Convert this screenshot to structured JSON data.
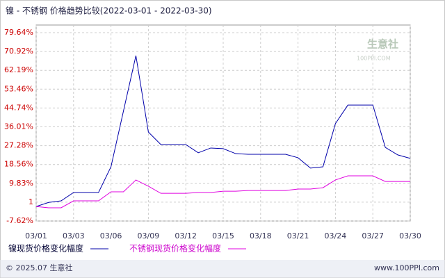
{
  "chart_data": {
    "type": "line",
    "title": "镍 - 不锈钢 价格趋势比较(2022-03-01 - 2022-03-30)",
    "categories": [
      "03/01",
      null,
      null,
      "03/03",
      null,
      null,
      "03/06",
      null,
      null,
      "03/09",
      null,
      null,
      "03/12",
      null,
      null,
      "03/15",
      null,
      null,
      "03/18",
      null,
      null,
      "03/21",
      null,
      null,
      "03/24",
      null,
      null,
      "03/27",
      null,
      null,
      "03/30"
    ],
    "series": [
      {
        "name": "镍现货价格变化幅度",
        "color": "#0000aa",
        "values": [
          -0.9,
          1.0,
          1.7,
          5.6,
          5.6,
          5.6,
          17.5,
          43.3,
          69.0,
          33.6,
          27.8,
          27.8,
          27.8,
          24.0,
          26.2,
          25.9,
          23.6,
          23.3,
          23.3,
          23.3,
          23.3,
          21.7,
          16.9,
          17.5,
          37.5,
          46.1,
          46.1,
          46.1,
          26.5,
          23.0,
          21.4
        ]
      },
      {
        "name": "不锈钢现货价格变化幅度",
        "color": "#e000e0",
        "values": [
          -0.9,
          -1.5,
          -1.5,
          1.7,
          1.7,
          1.7,
          5.9,
          5.9,
          11.4,
          8.5,
          5.2,
          5.2,
          5.2,
          5.6,
          5.6,
          6.2,
          6.2,
          6.5,
          6.5,
          6.5,
          6.5,
          7.2,
          7.2,
          7.8,
          11.4,
          13.3,
          13.3,
          13.3,
          10.7,
          10.7,
          10.7
        ]
      }
    ],
    "ylim": [
      -7.62,
      79.64
    ],
    "yticks": [
      {
        "value": -7.62,
        "label": "-7.62%"
      },
      {
        "value": 1.1,
        "label": "1"
      },
      {
        "value": 9.83,
        "label": "9.83%"
      },
      {
        "value": 18.56,
        "label": "18.56%"
      },
      {
        "value": 27.28,
        "label": "27.28%"
      },
      {
        "value": 36.01,
        "label": "36.01%"
      },
      {
        "value": 44.74,
        "label": "44.74%"
      },
      {
        "value": 53.46,
        "label": "53.46%"
      },
      {
        "value": 62.19,
        "label": "62.19%"
      },
      {
        "value": 70.92,
        "label": "70.92%"
      },
      {
        "value": 79.64,
        "label": "79.64%"
      }
    ],
    "grid": true,
    "watermark": {
      "name": "生意社",
      "site": "100PPI.COM"
    },
    "footer": {
      "left": "© 2025.07 生意社",
      "right": "www.100PPI.com"
    }
  }
}
